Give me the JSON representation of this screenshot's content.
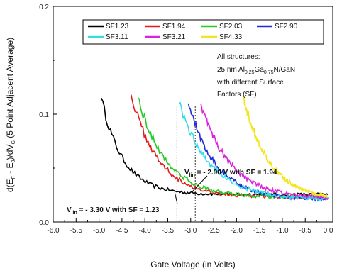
{
  "chart_data": {
    "type": "line",
    "title": "",
    "xlabel": "Gate Voltage (in Volts)",
    "ylabel": "d(E",
    "ylabel_sub": "F",
    "ylabel_mid": " - E",
    "ylabel_sub2": "0",
    "ylabel_mid2": ")/dV",
    "ylabel_sub3": "G",
    "ylabel_tail": " (5 Point Adjacent Average)",
    "xlim": [
      -6.0,
      0.1
    ],
    "ylim": [
      0.0,
      0.2
    ],
    "x_ticks": [
      "-6.0",
      "-5.5",
      "-5.0",
      "-4.5",
      "-4.0",
      "-3.5",
      "-3.0",
      "-2.5",
      "-2.0",
      "-1.5",
      "-1.0",
      "-0.5",
      "0.0"
    ],
    "x_tick_values": [
      -6.0,
      -5.5,
      -5.0,
      -4.5,
      -4.0,
      -3.5,
      -3.0,
      -2.5,
      -2.0,
      -1.5,
      -1.0,
      -0.5,
      0.0
    ],
    "y_ticks": [
      "0.0",
      "0.1",
      "0.2"
    ],
    "y_tick_values": [
      0.0,
      0.1,
      0.2
    ],
    "grid": false,
    "legend_position": "top-right",
    "series": [
      {
        "name": "SF1.23",
        "color": "#000000",
        "x0": -4.95,
        "y0": 0.115,
        "a": 0.0255,
        "k": 2.1,
        "xend": 0.0
      },
      {
        "name": "SF1.94",
        "color": "#e41a1c",
        "x0": -4.3,
        "y0": 0.118,
        "a": 0.0225,
        "k": 1.65,
        "xend": -0.02
      },
      {
        "name": "SF2.03",
        "color": "#22cc22",
        "x0": -4.15,
        "y0": 0.115,
        "a": 0.0225,
        "k": 1.6,
        "xend": -0.02
      },
      {
        "name": "SF2.90",
        "color": "#1f2bd6",
        "x0": -3.05,
        "y0": 0.11,
        "a": 0.0205,
        "k": 1.65,
        "xend": 0.0
      },
      {
        "name": "SF3.11",
        "color": "#33dde8",
        "x0": -3.25,
        "y0": 0.11,
        "a": 0.0205,
        "k": 1.45,
        "xend": 0.02
      },
      {
        "name": "SF3.21",
        "color": "#dd22dd",
        "x0": -2.78,
        "y0": 0.11,
        "a": 0.0215,
        "k": 1.55,
        "xend": 0.02
      },
      {
        "name": "SF4.33",
        "color": "#f2e61a",
        "x0": -1.85,
        "y0": 0.115,
        "a": 0.0205,
        "k": 1.75,
        "xend": 0.0
      }
    ],
    "vlines": [
      {
        "x": -3.3
      },
      {
        "x": -2.9
      }
    ],
    "note_lines": [
      "All structures:",
      "with different Surface",
      "Factors (SF)"
    ],
    "note_line2": {
      "pre": "25 nm Al",
      "sub1": "0.25",
      "mid": "Ga",
      "sub2": "0.75",
      "post": "N/GaN"
    },
    "annotations": [
      {
        "pre": "V",
        "sub": "lin",
        "text": " = - 2.90 V with SF = 1.94",
        "target_x": -2.95,
        "target_y": 0.029
      },
      {
        "pre": "V",
        "sub": "lin",
        "text": " = - 3.30 V with SF = 1.23",
        "target_x": -3.35,
        "target_y": 0.028
      }
    ]
  }
}
